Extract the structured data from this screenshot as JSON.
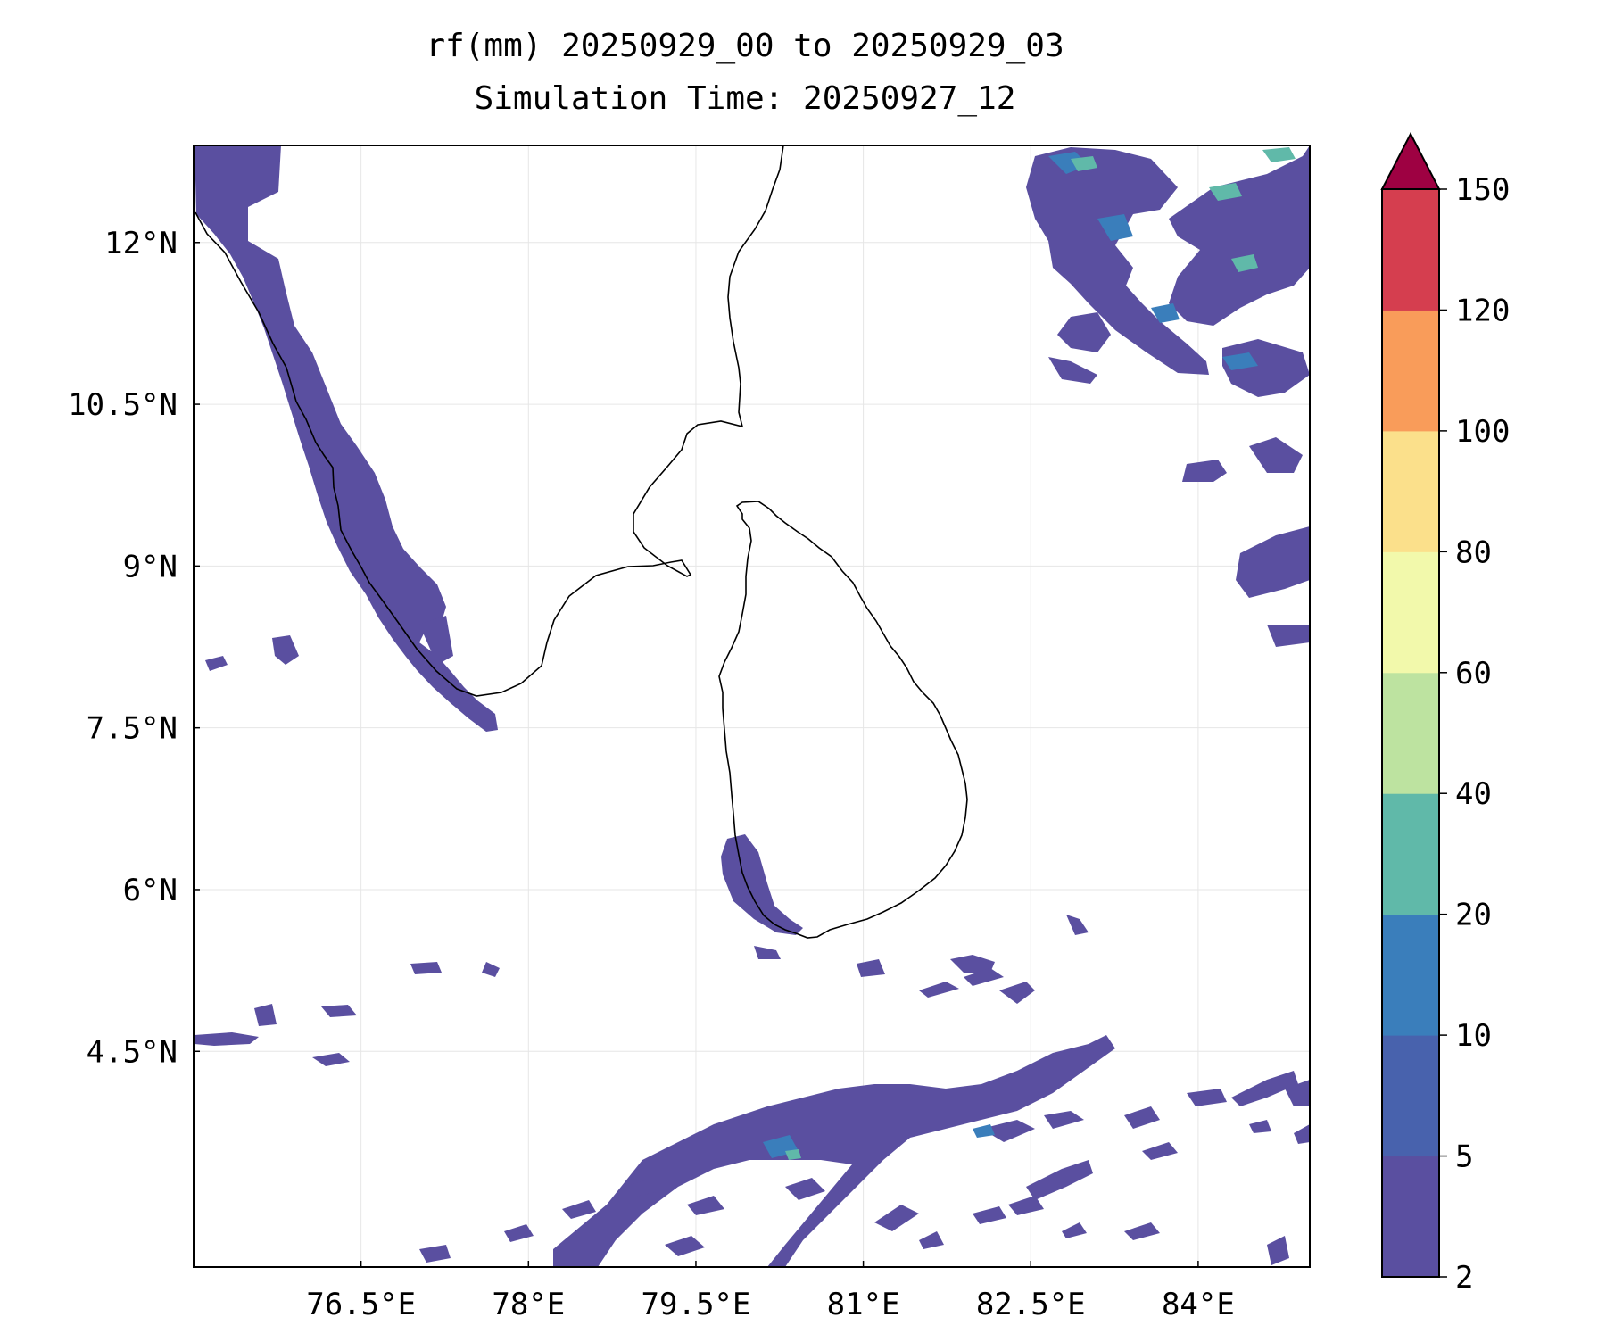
{
  "title": {
    "line1": "rf(mm) 20250929_00 to 20250929_03",
    "line2": "Simulation Time: 20250927_12"
  },
  "map": {
    "lon_range": [
      75.0,
      85.0
    ],
    "lat_range": [
      2.5,
      12.9
    ],
    "lon_ticks": [
      {
        "value": 76.5,
        "label": "76.5°E"
      },
      {
        "value": 78.0,
        "label": "78°E"
      },
      {
        "value": 79.5,
        "label": "79.5°E"
      },
      {
        "value": 81.0,
        "label": "81°E"
      },
      {
        "value": 82.5,
        "label": "82.5°E"
      },
      {
        "value": 84.0,
        "label": "84°E"
      }
    ],
    "lat_ticks": [
      {
        "value": 12.0,
        "label": "12°N"
      },
      {
        "value": 10.5,
        "label": "10.5°N"
      },
      {
        "value": 9.0,
        "label": "9°N"
      },
      {
        "value": 7.5,
        "label": "7.5°N"
      },
      {
        "value": 6.0,
        "label": "6°N"
      },
      {
        "value": 4.5,
        "label": "4.5°N"
      }
    ],
    "grid": true,
    "coastline_color": "#000000"
  },
  "colorbar": {
    "levels": [
      "2",
      "5",
      "10",
      "20",
      "40",
      "60",
      "80",
      "100",
      "120",
      "150"
    ],
    "colors": [
      "#5a4fa0",
      "#4862ad",
      "#3a7ebb",
      "#60b9a9",
      "#bde3a0",
      "#f2f9ab",
      "#fbe08b",
      "#f99c5a",
      "#d53e4f"
    ],
    "extend_color": "#9e0142",
    "extend": "max"
  },
  "rain_color_low": "#5a4fa0",
  "rain_color_mid": "#3a7ebb",
  "rain_color_high": "#60b9a9"
}
